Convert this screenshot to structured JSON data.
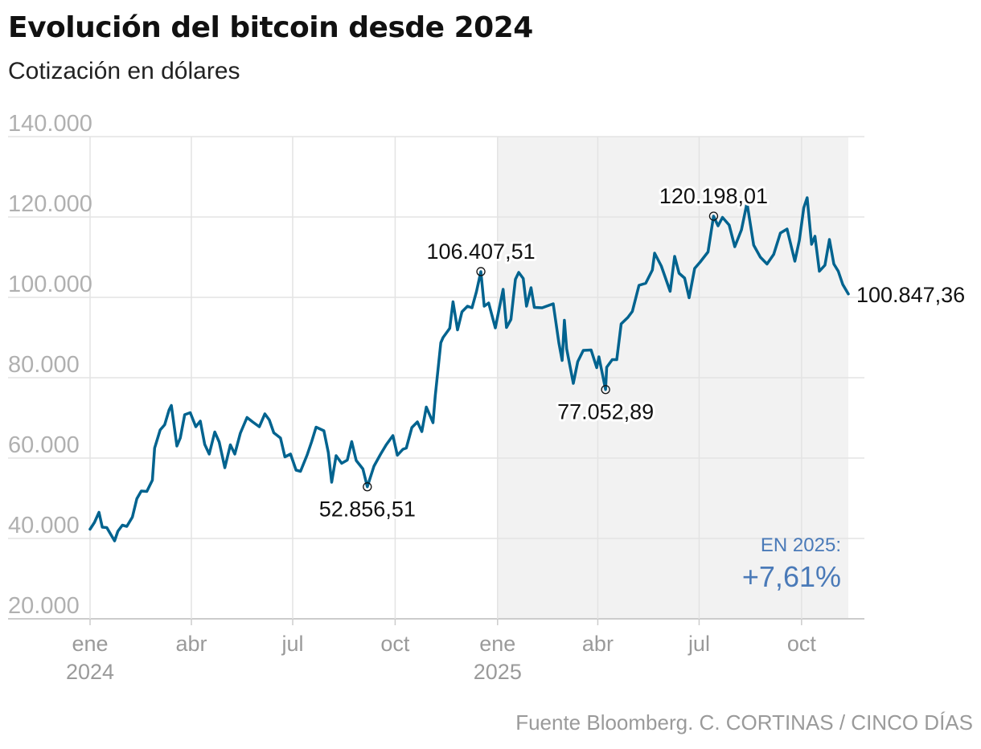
{
  "header": {
    "title": "Evolución del bitcoin desde 2024",
    "subtitle": "Cotización en dólares"
  },
  "footer": {
    "source": "Fuente Bloomberg. C. CORTINAS / CINCO DÍAS"
  },
  "colors": {
    "line": "#00638f",
    "highlight_band": "#f2f2f2",
    "grid": "#e3e3e3",
    "accent_text": "#4a7ab8"
  },
  "chart_data": {
    "type": "line",
    "title": "Evolución del bitcoin desde 2024",
    "subtitle": "Cotización en dólares",
    "ylim": [
      20000,
      140000
    ],
    "yticks": [
      {
        "value": 20000,
        "label": "20.000"
      },
      {
        "value": 40000,
        "label": "40.000"
      },
      {
        "value": 60000,
        "label": "60.000"
      },
      {
        "value": 80000,
        "label": "80.000"
      },
      {
        "value": 100000,
        "label": "100.000"
      },
      {
        "value": 120000,
        "label": "120.000"
      },
      {
        "value": 140000,
        "label": "140.000"
      }
    ],
    "xlim": [
      "2024-01-01",
      "2025-11-12"
    ],
    "xticks": [
      {
        "date": "2024-01-01",
        "label": "ene",
        "year": "2024"
      },
      {
        "date": "2024-04-01",
        "label": "abr",
        "year": ""
      },
      {
        "date": "2024-07-01",
        "label": "jul",
        "year": ""
      },
      {
        "date": "2024-10-01",
        "label": "oct",
        "year": ""
      },
      {
        "date": "2025-01-01",
        "label": "ene",
        "year": "2025"
      },
      {
        "date": "2025-04-01",
        "label": "abr",
        "year": ""
      },
      {
        "date": "2025-07-01",
        "label": "jul",
        "year": ""
      },
      {
        "date": "2025-10-01",
        "label": "oct",
        "year": ""
      }
    ],
    "highlight_range": [
      "2025-01-01",
      "2025-11-12"
    ],
    "grid": true,
    "series": [
      {
        "points": [
          [
            "2024-01-01",
            42300
          ],
          [
            "2024-01-05",
            44000
          ],
          [
            "2024-01-09",
            46500
          ],
          [
            "2024-01-12",
            42800
          ],
          [
            "2024-01-16",
            42700
          ],
          [
            "2024-01-19",
            41300
          ],
          [
            "2024-01-23",
            39400
          ],
          [
            "2024-01-26",
            41800
          ],
          [
            "2024-01-30",
            43300
          ],
          [
            "2024-02-03",
            43000
          ],
          [
            "2024-02-08",
            45300
          ],
          [
            "2024-02-12",
            49900
          ],
          [
            "2024-02-16",
            51800
          ],
          [
            "2024-02-21",
            51700
          ],
          [
            "2024-02-26",
            54500
          ],
          [
            "2024-02-28",
            62500
          ],
          [
            "2024-03-04",
            67000
          ],
          [
            "2024-03-08",
            68300
          ],
          [
            "2024-03-12",
            72000
          ],
          [
            "2024-03-14",
            73100
          ],
          [
            "2024-03-19",
            63000
          ],
          [
            "2024-03-22",
            65000
          ],
          [
            "2024-03-26",
            70800
          ],
          [
            "2024-03-31",
            71300
          ],
          [
            "2024-04-05",
            67800
          ],
          [
            "2024-04-09",
            69200
          ],
          [
            "2024-04-13",
            63400
          ],
          [
            "2024-04-17",
            61000
          ],
          [
            "2024-04-22",
            66500
          ],
          [
            "2024-04-26",
            64000
          ],
          [
            "2024-05-01",
            57600
          ],
          [
            "2024-05-06",
            63300
          ],
          [
            "2024-05-10",
            61000
          ],
          [
            "2024-05-15",
            66200
          ],
          [
            "2024-05-21",
            70100
          ],
          [
            "2024-05-26",
            69000
          ],
          [
            "2024-06-01",
            67800
          ],
          [
            "2024-06-06",
            71000
          ],
          [
            "2024-06-10",
            69500
          ],
          [
            "2024-06-14",
            66300
          ],
          [
            "2024-06-20",
            65000
          ],
          [
            "2024-06-24",
            60300
          ],
          [
            "2024-06-29",
            61000
          ],
          [
            "2024-07-04",
            57000
          ],
          [
            "2024-07-08",
            56700
          ],
          [
            "2024-07-14",
            60800
          ],
          [
            "2024-07-18",
            64100
          ],
          [
            "2024-07-22",
            67700
          ],
          [
            "2024-07-29",
            66800
          ],
          [
            "2024-08-02",
            61400
          ],
          [
            "2024-08-05",
            54000
          ],
          [
            "2024-08-09",
            60600
          ],
          [
            "2024-08-14",
            58700
          ],
          [
            "2024-08-19",
            59500
          ],
          [
            "2024-08-23",
            64100
          ],
          [
            "2024-08-27",
            59400
          ],
          [
            "2024-09-02",
            57300
          ],
          [
            "2024-09-06",
            52856.51
          ],
          [
            "2024-09-12",
            58000
          ],
          [
            "2024-09-18",
            61000
          ],
          [
            "2024-09-23",
            63300
          ],
          [
            "2024-09-29",
            65600
          ],
          [
            "2024-10-03",
            60700
          ],
          [
            "2024-10-08",
            62200
          ],
          [
            "2024-10-11",
            62500
          ],
          [
            "2024-10-16",
            67600
          ],
          [
            "2024-10-21",
            69000
          ],
          [
            "2024-10-25",
            66600
          ],
          [
            "2024-10-29",
            72700
          ],
          [
            "2024-11-04",
            68800
          ],
          [
            "2024-11-06",
            75500
          ],
          [
            "2024-11-11",
            88700
          ],
          [
            "2024-11-13",
            90000
          ],
          [
            "2024-11-19",
            92300
          ],
          [
            "2024-11-22",
            98900
          ],
          [
            "2024-11-26",
            91900
          ],
          [
            "2024-11-30",
            96400
          ],
          [
            "2024-12-05",
            97800
          ],
          [
            "2024-12-09",
            97400
          ],
          [
            "2024-12-13",
            101400
          ],
          [
            "2024-12-17",
            106407.51
          ],
          [
            "2024-12-20",
            97800
          ],
          [
            "2024-12-24",
            98600
          ],
          [
            "2024-12-30",
            92400
          ],
          [
            "2025-01-06",
            102000
          ],
          [
            "2025-01-09",
            92500
          ],
          [
            "2025-01-13",
            94500
          ],
          [
            "2025-01-17",
            104500
          ],
          [
            "2025-01-20",
            106200
          ],
          [
            "2025-01-24",
            104700
          ],
          [
            "2025-01-27",
            97800
          ],
          [
            "2025-01-31",
            102400
          ],
          [
            "2025-02-03",
            97500
          ],
          [
            "2025-02-10",
            97400
          ],
          [
            "2025-02-20",
            98400
          ],
          [
            "2025-02-25",
            88700
          ],
          [
            "2025-02-28",
            84300
          ],
          [
            "2025-03-02",
            94300
          ],
          [
            "2025-03-04",
            87200
          ],
          [
            "2025-03-10",
            78600
          ],
          [
            "2025-03-14",
            84000
          ],
          [
            "2025-03-19",
            86800
          ],
          [
            "2025-03-26",
            86900
          ],
          [
            "2025-03-31",
            82500
          ],
          [
            "2025-04-02",
            85200
          ],
          [
            "2025-04-08",
            77052.89
          ],
          [
            "2025-04-09",
            82600
          ],
          [
            "2025-04-14",
            84500
          ],
          [
            "2025-04-18",
            84500
          ],
          [
            "2025-04-22",
            93400
          ],
          [
            "2025-04-28",
            95000
          ],
          [
            "2025-05-02",
            96500
          ],
          [
            "2025-05-08",
            103000
          ],
          [
            "2025-05-14",
            103500
          ],
          [
            "2025-05-20",
            106800
          ],
          [
            "2025-05-22",
            111000
          ],
          [
            "2025-05-28",
            107800
          ],
          [
            "2025-06-05",
            101500
          ],
          [
            "2025-06-09",
            110200
          ],
          [
            "2025-06-13",
            106000
          ],
          [
            "2025-06-18",
            104800
          ],
          [
            "2025-06-22",
            99900
          ],
          [
            "2025-06-27",
            107200
          ],
          [
            "2025-07-02",
            108800
          ],
          [
            "2025-07-09",
            111300
          ],
          [
            "2025-07-14",
            120198.01
          ],
          [
            "2025-07-18",
            117800
          ],
          [
            "2025-07-22",
            119900
          ],
          [
            "2025-07-28",
            118000
          ],
          [
            "2025-08-02",
            112600
          ],
          [
            "2025-08-08",
            116800
          ],
          [
            "2025-08-13",
            123500
          ],
          [
            "2025-08-19",
            113000
          ],
          [
            "2025-08-25",
            110000
          ],
          [
            "2025-08-31",
            108300
          ],
          [
            "2025-09-06",
            110700
          ],
          [
            "2025-09-12",
            116000
          ],
          [
            "2025-09-18",
            117000
          ],
          [
            "2025-09-25",
            109000
          ],
          [
            "2025-09-29",
            114200
          ],
          [
            "2025-10-03",
            122300
          ],
          [
            "2025-10-06",
            124800
          ],
          [
            "2025-10-10",
            113200
          ],
          [
            "2025-10-13",
            115200
          ],
          [
            "2025-10-17",
            106500
          ],
          [
            "2025-10-22",
            108000
          ],
          [
            "2025-10-26",
            114400
          ],
          [
            "2025-10-30",
            108300
          ],
          [
            "2025-11-03",
            106500
          ],
          [
            "2025-11-07",
            103200
          ],
          [
            "2025-11-12",
            100847.36
          ]
        ]
      }
    ],
    "annotations": [
      {
        "date": "2024-09-06",
        "value": 52856.51,
        "label": "52.856,51",
        "position": "below",
        "marker": true
      },
      {
        "date": "2024-12-17",
        "value": 106407.51,
        "label": "106.407,51",
        "position": "above",
        "marker": true
      },
      {
        "date": "2025-04-08",
        "value": 77052.89,
        "label": "77.052,89",
        "position": "below",
        "marker": true
      },
      {
        "date": "2025-07-14",
        "value": 120198.01,
        "label": "120.198,01",
        "position": "above",
        "marker": true
      },
      {
        "date": "2025-11-12",
        "value": 100847.36,
        "label": "100.847,36",
        "position": "right",
        "marker": false
      }
    ],
    "ytd_label": "EN 2025:",
    "ytd_value": "+7,61%"
  }
}
